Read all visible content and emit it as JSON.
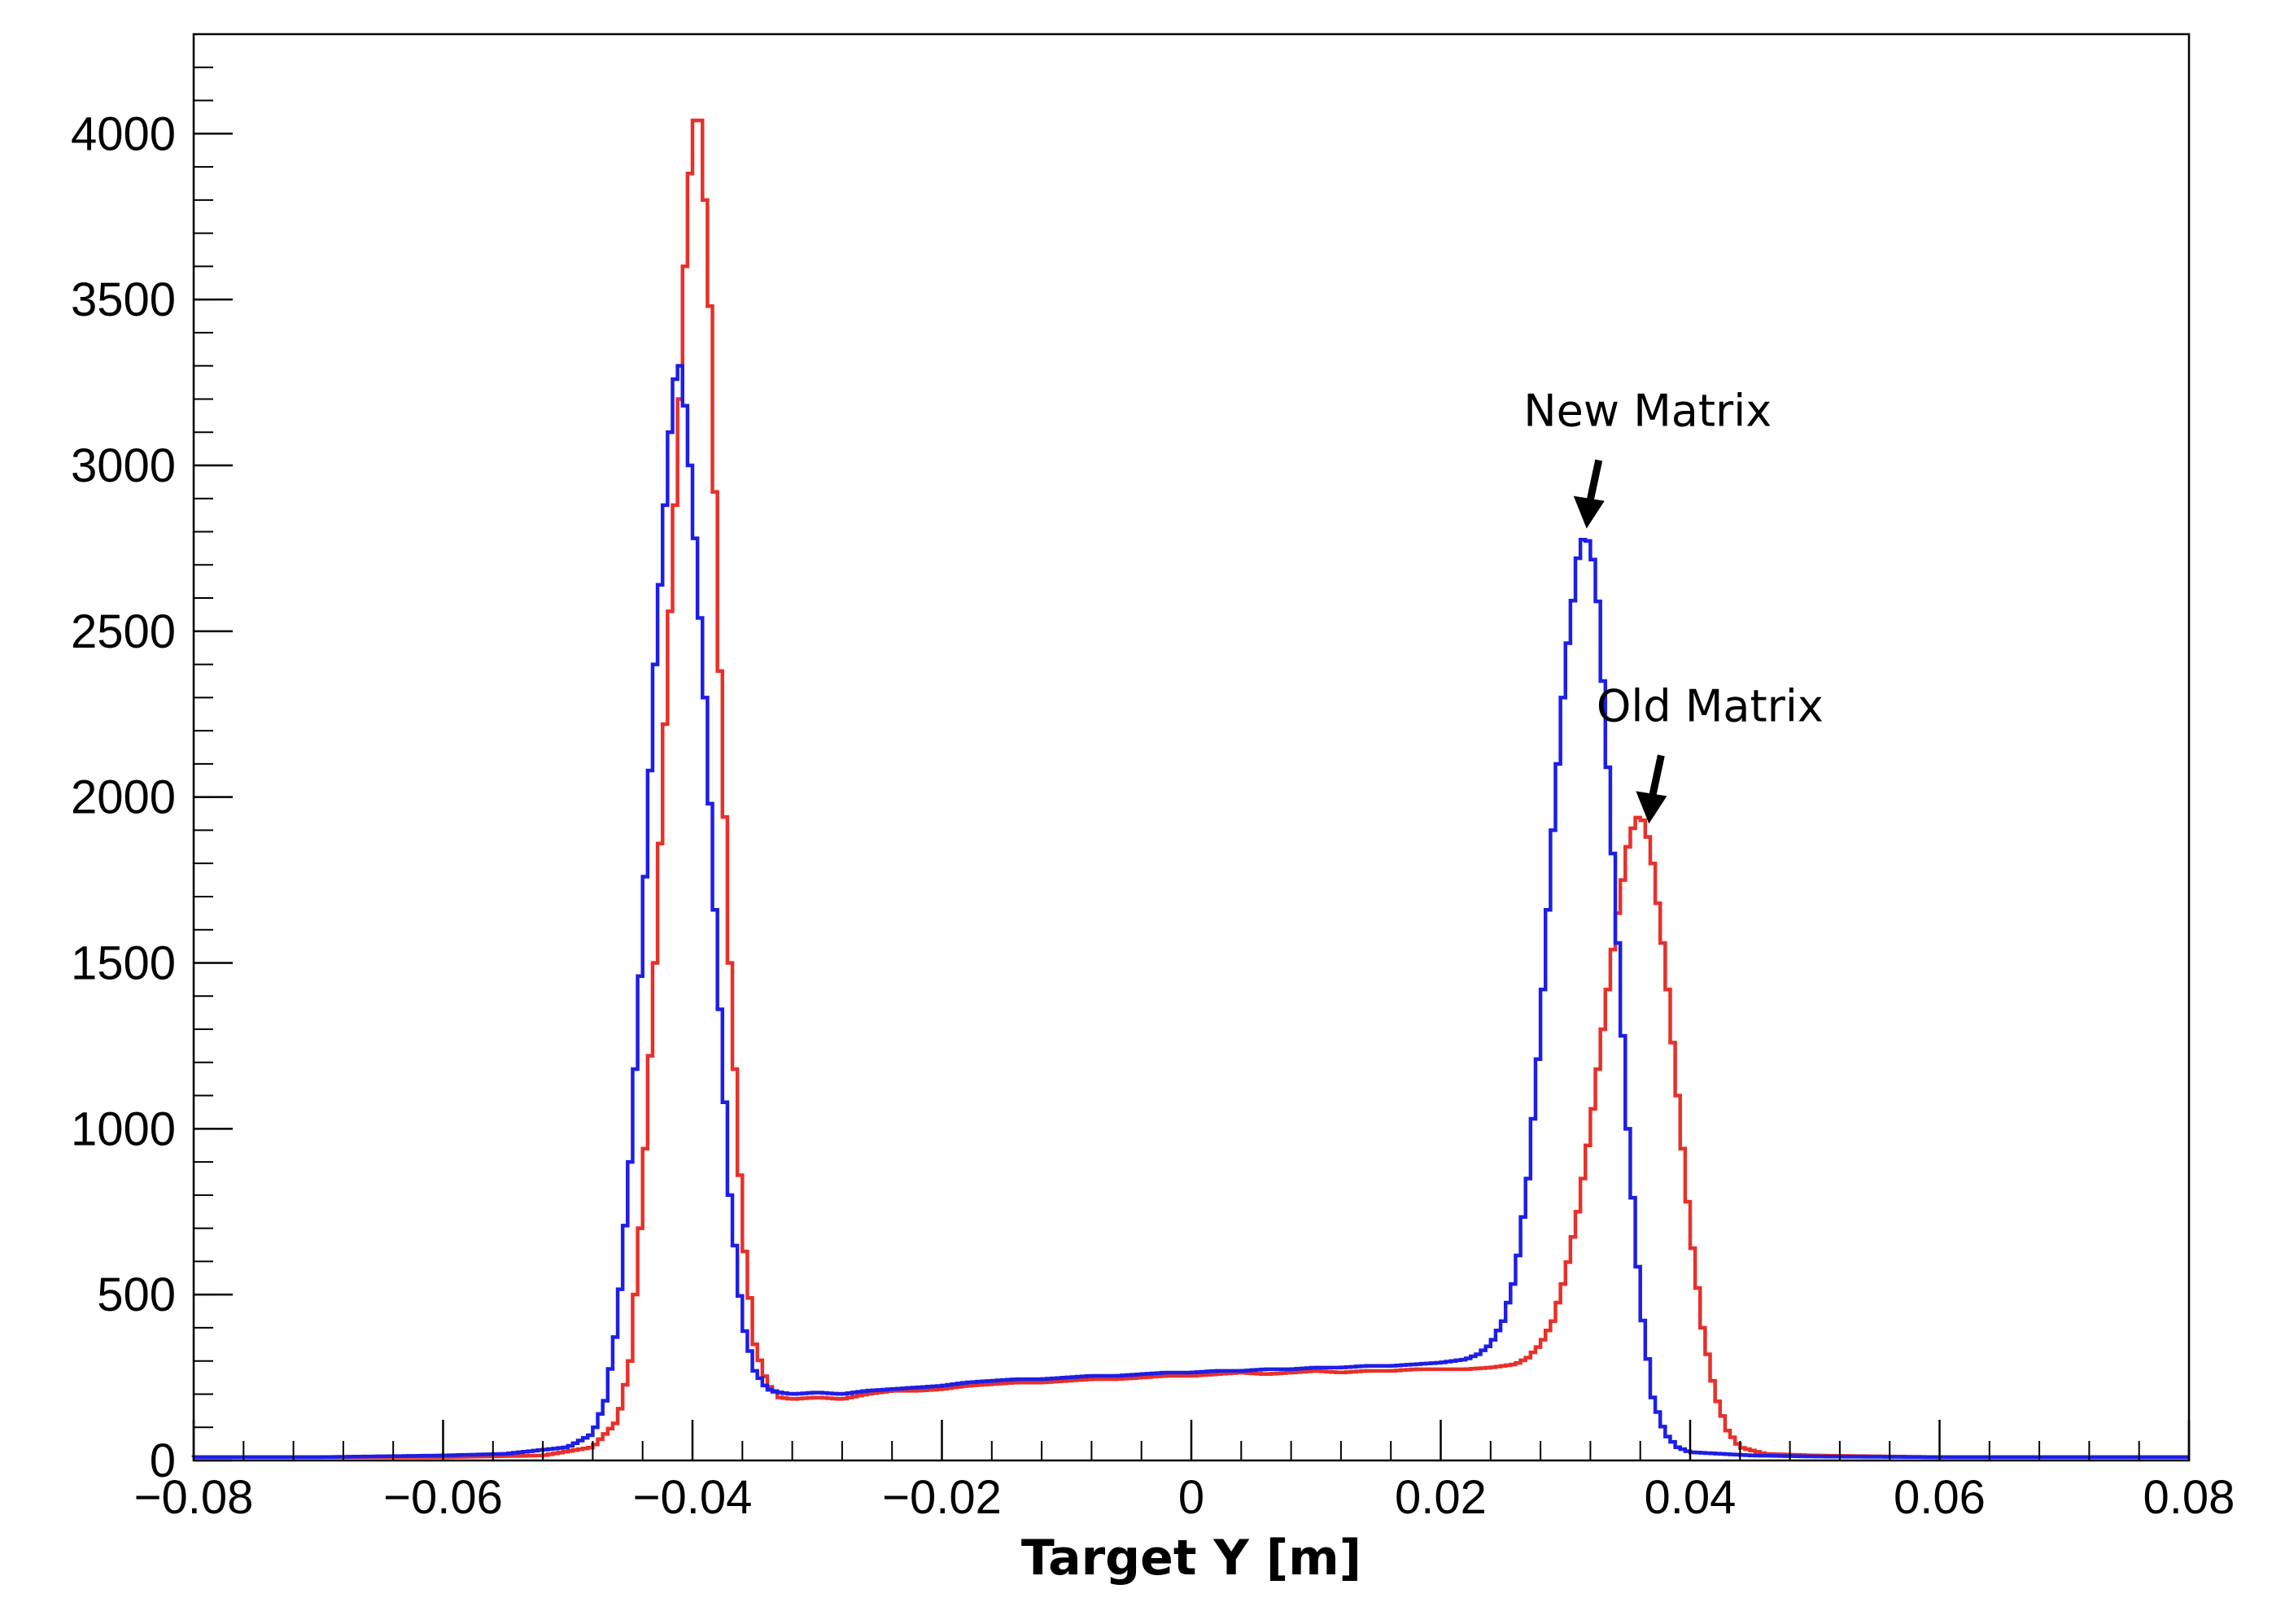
{
  "chart_data": {
    "type": "line",
    "title": "",
    "xlabel": "Target Y [m]",
    "ylabel": "",
    "xlim": [
      -0.08,
      0.08
    ],
    "ylim": [
      0,
      4300
    ],
    "x_ticks": [
      -0.08,
      -0.06,
      -0.04,
      -0.02,
      0,
      0.02,
      0.04,
      0.06,
      0.08
    ],
    "x_tick_labels": [
      "−0.08",
      "−0.06",
      "−0.04",
      "−0.02",
      "0",
      "0.02",
      "0.04",
      "0.06",
      "0.08"
    ],
    "y_ticks": [
      0,
      500,
      1000,
      1500,
      2000,
      2500,
      3000,
      3500,
      4000
    ],
    "y_tick_labels": [
      "0",
      "500",
      "1000",
      "1500",
      "2000",
      "2500",
      "3000",
      "3500",
      "4000"
    ],
    "grid": false,
    "legend": "none",
    "series": [
      {
        "color": "#e8302a",
        "points": [
          [
            -0.08,
            10
          ],
          [
            -0.07,
            10
          ],
          [
            -0.06,
            10
          ],
          [
            -0.052,
            15
          ],
          [
            -0.048,
            40
          ],
          [
            -0.046,
            120
          ],
          [
            -0.045,
            300
          ],
          [
            -0.044,
            800
          ],
          [
            -0.043,
            1500
          ],
          [
            -0.042,
            2400
          ],
          [
            -0.041,
            3200
          ],
          [
            -0.0405,
            3700
          ],
          [
            -0.04,
            4000
          ],
          [
            -0.0395,
            4100
          ],
          [
            -0.039,
            3800
          ],
          [
            -0.0385,
            3400
          ],
          [
            -0.038,
            2600
          ],
          [
            -0.037,
            1500
          ],
          [
            -0.036,
            700
          ],
          [
            -0.035,
            350
          ],
          [
            -0.034,
            230
          ],
          [
            -0.033,
            190
          ],
          [
            -0.032,
            185
          ],
          [
            -0.03,
            190
          ],
          [
            -0.028,
            185
          ],
          [
            -0.026,
            200
          ],
          [
            -0.024,
            210
          ],
          [
            -0.022,
            210
          ],
          [
            -0.02,
            215
          ],
          [
            -0.018,
            225
          ],
          [
            -0.016,
            230
          ],
          [
            -0.014,
            235
          ],
          [
            -0.012,
            235
          ],
          [
            -0.01,
            240
          ],
          [
            -0.008,
            245
          ],
          [
            -0.006,
            245
          ],
          [
            -0.004,
            250
          ],
          [
            -0.002,
            255
          ],
          [
            0,
            255
          ],
          [
            0.002,
            260
          ],
          [
            0.004,
            265
          ],
          [
            0.006,
            260
          ],
          [
            0.008,
            265
          ],
          [
            0.01,
            270
          ],
          [
            0.012,
            265
          ],
          [
            0.014,
            270
          ],
          [
            0.016,
            270
          ],
          [
            0.018,
            275
          ],
          [
            0.02,
            275
          ],
          [
            0.022,
            275
          ],
          [
            0.024,
            280
          ],
          [
            0.026,
            290
          ],
          [
            0.027,
            310
          ],
          [
            0.028,
            350
          ],
          [
            0.029,
            420
          ],
          [
            0.03,
            560
          ],
          [
            0.031,
            750
          ],
          [
            0.032,
            1000
          ],
          [
            0.033,
            1300
          ],
          [
            0.034,
            1600
          ],
          [
            0.035,
            1850
          ],
          [
            0.0355,
            1920
          ],
          [
            0.036,
            1950
          ],
          [
            0.0365,
            1900
          ],
          [
            0.037,
            1800
          ],
          [
            0.038,
            1500
          ],
          [
            0.039,
            1100
          ],
          [
            0.04,
            700
          ],
          [
            0.041,
            400
          ],
          [
            0.042,
            200
          ],
          [
            0.043,
            90
          ],
          [
            0.044,
            40
          ],
          [
            0.046,
            20
          ],
          [
            0.05,
            15
          ],
          [
            0.06,
            10
          ],
          [
            0.07,
            10
          ],
          [
            0.08,
            10
          ]
        ]
      },
      {
        "color": "#1e1ee6",
        "points": [
          [
            -0.08,
            10
          ],
          [
            -0.07,
            10
          ],
          [
            -0.06,
            15
          ],
          [
            -0.055,
            20
          ],
          [
            -0.05,
            40
          ],
          [
            -0.048,
            80
          ],
          [
            -0.047,
            180
          ],
          [
            -0.046,
            420
          ],
          [
            -0.045,
            900
          ],
          [
            -0.044,
            1600
          ],
          [
            -0.043,
            2400
          ],
          [
            -0.042,
            3000
          ],
          [
            -0.0415,
            3250
          ],
          [
            -0.041,
            3300
          ],
          [
            -0.0405,
            3150
          ],
          [
            -0.04,
            2900
          ],
          [
            -0.039,
            2300
          ],
          [
            -0.038,
            1500
          ],
          [
            -0.037,
            800
          ],
          [
            -0.036,
            420
          ],
          [
            -0.035,
            270
          ],
          [
            -0.034,
            215
          ],
          [
            -0.033,
            205
          ],
          [
            -0.032,
            200
          ],
          [
            -0.03,
            205
          ],
          [
            -0.028,
            200
          ],
          [
            -0.026,
            210
          ],
          [
            -0.024,
            215
          ],
          [
            -0.022,
            220
          ],
          [
            -0.02,
            225
          ],
          [
            -0.018,
            235
          ],
          [
            -0.016,
            240
          ],
          [
            -0.014,
            245
          ],
          [
            -0.012,
            245
          ],
          [
            -0.01,
            250
          ],
          [
            -0.008,
            255
          ],
          [
            -0.006,
            255
          ],
          [
            -0.004,
            260
          ],
          [
            -0.002,
            265
          ],
          [
            0,
            265
          ],
          [
            0.002,
            270
          ],
          [
            0.004,
            270
          ],
          [
            0.006,
            275
          ],
          [
            0.008,
            275
          ],
          [
            0.01,
            280
          ],
          [
            0.012,
            280
          ],
          [
            0.014,
            285
          ],
          [
            0.016,
            285
          ],
          [
            0.018,
            290
          ],
          [
            0.02,
            295
          ],
          [
            0.022,
            305
          ],
          [
            0.023,
            320
          ],
          [
            0.024,
            350
          ],
          [
            0.025,
            420
          ],
          [
            0.026,
            560
          ],
          [
            0.027,
            850
          ],
          [
            0.028,
            1300
          ],
          [
            0.029,
            1900
          ],
          [
            0.03,
            2400
          ],
          [
            0.031,
            2720
          ],
          [
            0.0315,
            2790
          ],
          [
            0.032,
            2760
          ],
          [
            0.0325,
            2650
          ],
          [
            0.033,
            2350
          ],
          [
            0.034,
            1700
          ],
          [
            0.035,
            1000
          ],
          [
            0.036,
            480
          ],
          [
            0.037,
            190
          ],
          [
            0.038,
            80
          ],
          [
            0.039,
            40
          ],
          [
            0.04,
            25
          ],
          [
            0.045,
            15
          ],
          [
            0.05,
            12
          ],
          [
            0.06,
            10
          ],
          [
            0.07,
            10
          ],
          [
            0.08,
            10
          ]
        ]
      }
    ],
    "annotations": [
      {
        "text": "New Matrix",
        "x": 0.0315,
        "y": 2790
      },
      {
        "text": "Old Matrix",
        "x": 0.0365,
        "y": 1900
      }
    ],
    "colors": {
      "old": "#e8302a",
      "new": "#1e1ee6",
      "frame": "#000000"
    }
  }
}
